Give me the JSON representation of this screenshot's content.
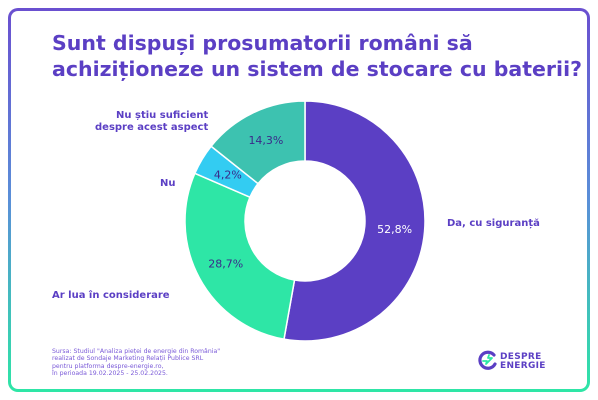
{
  "title_lines": [
    "Sunt dispuși prosumatorii români să",
    "achiziționeze un sistem de stocare cu baterii?"
  ],
  "chart_data": {
    "type": "pie",
    "title": "Sunt dispuși prosumatorii români să achiziționeze un sistem de stocare cu baterii?",
    "slices": [
      {
        "label": "Da, cu siguranță",
        "value": 52.8,
        "value_label": "52,8%",
        "color": "#5b3fc4"
      },
      {
        "label": "Ar lua în considerare",
        "value": 28.7,
        "value_label": "28,7%",
        "color": "#2ee6a6"
      },
      {
        "label": "Nu",
        "value": 4.2,
        "value_label": "4,2%",
        "color": "#33ccf2"
      },
      {
        "label": "Nu știu suficient despre acest aspect",
        "value": 14.3,
        "value_label": "14,3%",
        "color": "#3dc2b0"
      }
    ]
  },
  "labels": {
    "da_lines": [
      "Da, cu siguranță"
    ],
    "ar_lua_lines": [
      "Ar lua în considerare"
    ],
    "nu_lines": [
      "Nu"
    ],
    "nu_stiu_lines": [
      "Nu știu suficient",
      "despre acest aspect"
    ]
  },
  "source_lines": [
    "Sursa: Studiul \"Analiza pieței de energie din România\"",
    "realizat de Sondaje Marketing Relații Publice SRL",
    "pentru platforma despre-energie.ro,",
    "în perioada 19.02.2025 - 25.02.2025."
  ],
  "logo": {
    "line1": "DESPRE",
    "line2": "ENERGIE",
    "icon": "energy-logo-icon",
    "colors": [
      "#5b3fc4",
      "#2ee6a6"
    ]
  }
}
